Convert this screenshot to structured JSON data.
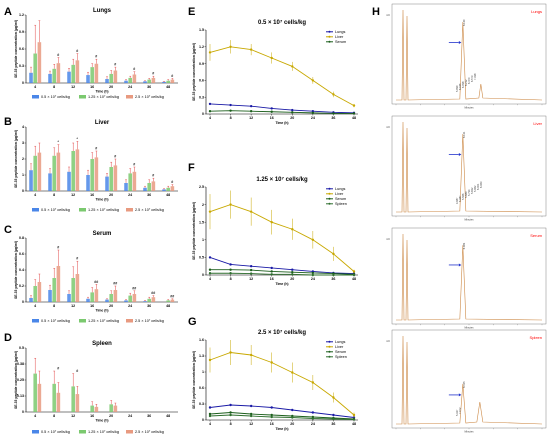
{
  "chart_data": [
    {
      "panel": "A",
      "type": "bar",
      "title": "Lungs",
      "categories": [
        "4",
        "8",
        "12",
        "16",
        "20",
        "24",
        "36",
        "48"
      ],
      "xlabel": "Time (h)",
      "ylabel": "SE-33 peptide concentration (μg/ml)",
      "ylim": [
        0,
        1.2
      ],
      "series": [
        {
          "name": "0.5 × 10⁷ cells/kg",
          "values": [
            0.18,
            0.16,
            0.2,
            0.14,
            0.07,
            0.04,
            0.03,
            0.02
          ],
          "errors": [
            0.1,
            0.05,
            0.06,
            0.05,
            0.04,
            0.02,
            0.01,
            0.01
          ]
        },
        {
          "name": "1.25 × 10⁷ cells/kg",
          "values": [
            0.52,
            0.25,
            0.32,
            0.28,
            0.16,
            0.09,
            0.06,
            0.04
          ],
          "errors": [
            0.5,
            0.08,
            0.1,
            0.06,
            0.06,
            0.03,
            0.02,
            0.02
          ]
        },
        {
          "name": "2.5 × 10⁷ cells/kg",
          "values": [
            0.72,
            0.35,
            0.4,
            0.34,
            0.22,
            0.15,
            0.09,
            0.06
          ],
          "errors": [
            0.38,
            0.1,
            0.12,
            0.08,
            0.06,
            0.05,
            0.03,
            0.02
          ]
        }
      ],
      "annotations": [
        "#",
        "#",
        "#",
        "#",
        "#",
        "#",
        "#"
      ]
    },
    {
      "panel": "B",
      "type": "bar",
      "title": "Liver",
      "categories": [
        "4",
        "8",
        "12",
        "16",
        "20",
        "24",
        "36",
        "48"
      ],
      "xlabel": "Time (h)",
      "ylabel": "SE-33 peptide concentration (μg/ml)",
      "ylim": [
        0,
        4
      ],
      "series": [
        {
          "name": "0.5 × 10⁷ cells/kg",
          "values": [
            1.3,
            1.1,
            1.2,
            1.0,
            0.9,
            0.5,
            0.2,
            0.1
          ],
          "errors": [
            0.4,
            0.3,
            0.3,
            0.3,
            0.2,
            0.2,
            0.1,
            0.05
          ]
        },
        {
          "name": "1.25 × 10⁷ cells/kg",
          "values": [
            2.2,
            2.2,
            2.5,
            2.0,
            1.5,
            1.1,
            0.5,
            0.2
          ],
          "errors": [
            0.6,
            0.5,
            0.5,
            0.4,
            0.3,
            0.3,
            0.2,
            0.1
          ]
        },
        {
          "name": "2.5 × 10⁷ cells/kg",
          "values": [
            2.4,
            2.4,
            2.6,
            2.1,
            1.6,
            1.2,
            0.6,
            0.3
          ],
          "errors": [
            0.6,
            0.5,
            0.5,
            0.4,
            0.4,
            0.3,
            0.2,
            0.1
          ]
        }
      ],
      "annotations": [
        "*",
        "*",
        "#",
        "#",
        "#",
        "#",
        "#"
      ]
    },
    {
      "panel": "C",
      "type": "bar",
      "title": "Serum",
      "categories": [
        "4",
        "8",
        "12",
        "16",
        "20",
        "24",
        "36",
        "48"
      ],
      "xlabel": "Time (h)",
      "ylabel": "SE-33 peptide concentration (μg/ml)",
      "ylim": [
        0,
        0.8
      ],
      "series": [
        {
          "name": "0.5 × 10⁷ cells/kg",
          "values": [
            0.05,
            0.15,
            0.1,
            0.04,
            0.03,
            0.02,
            0.01,
            0.0
          ],
          "errors": [
            0.03,
            0.06,
            0.04,
            0.02,
            0.01,
            0.01,
            0.01,
            0.0
          ]
        },
        {
          "name": "1.25 × 10⁷ cells/kg",
          "values": [
            0.2,
            0.3,
            0.3,
            0.12,
            0.1,
            0.08,
            0.04,
            0.02
          ],
          "errors": [
            0.08,
            0.12,
            0.14,
            0.06,
            0.04,
            0.03,
            0.02,
            0.01
          ]
        },
        {
          "name": "2.5 × 10⁷ cells/kg",
          "values": [
            0.25,
            0.45,
            0.35,
            0.16,
            0.15,
            0.1,
            0.06,
            0.03
          ],
          "errors": [
            0.1,
            0.2,
            0.16,
            0.06,
            0.05,
            0.04,
            0.02,
            0.01
          ]
        }
      ],
      "annotations": [
        "#",
        "#",
        "##",
        "##",
        "##",
        "##",
        "##"
      ]
    },
    {
      "panel": "D",
      "type": "bar",
      "title": "Spleen",
      "categories": [
        "4",
        "8",
        "12",
        "16",
        "20",
        "24",
        "36",
        "48"
      ],
      "xlabel": "Time (h)",
      "ylabel": "SE-33 peptide concentration (μg/ml)",
      "ylim": [
        0,
        0.5
      ],
      "series": [
        {
          "name": "0.5 × 10⁷ cells/kg",
          "values": [
            0.0,
            0.0,
            0.0,
            0.0,
            0.0,
            0.0,
            0.0,
            0.0
          ],
          "errors": [
            0,
            0,
            0,
            0,
            0,
            0,
            0,
            0
          ]
        },
        {
          "name": "1.25 × 10⁷ cells/kg",
          "values": [
            0.3,
            0.22,
            0.2,
            0.05,
            0.06,
            0.0,
            0.0,
            0.0
          ],
          "errors": [
            0.12,
            0.1,
            0.1,
            0.03,
            0.03,
            0,
            0,
            0
          ]
        },
        {
          "name": "2.5 × 10⁷ cells/kg",
          "values": [
            0.22,
            0.15,
            0.14,
            0.04,
            0.05,
            0.0,
            0.0,
            0.0
          ],
          "errors": [
            0.1,
            0.08,
            0.06,
            0.02,
            0.02,
            0,
            0,
            0
          ]
        }
      ],
      "annotations": [
        "#",
        "#"
      ]
    },
    {
      "panel": "E",
      "type": "line",
      "title": "0.5 × 10⁷ cells/kg",
      "x": [
        4,
        8,
        12,
        16,
        20,
        24,
        36,
        48
      ],
      "xlabel": "Time (h)",
      "ylabel": "SE-33 peptide concentration (μg/ml)",
      "ylim": [
        0,
        1.5
      ],
      "series": [
        {
          "name": "Lungs",
          "color": "#1a1aa6",
          "values": [
            0.18,
            0.16,
            0.14,
            0.1,
            0.07,
            0.05,
            0.03,
            0.02
          ]
        },
        {
          "name": "Liver",
          "color": "#c8a800",
          "values": [
            1.1,
            1.2,
            1.15,
            1.0,
            0.85,
            0.6,
            0.35,
            0.15
          ],
          "errors": [
            0.15,
            0.12,
            0.1,
            0.1,
            0.08,
            0.06,
            0.05,
            0.03
          ]
        },
        {
          "name": "Serum",
          "color": "#1b5e1b",
          "values": [
            0.05,
            0.06,
            0.05,
            0.04,
            0.03,
            0.02,
            0.01,
            0.01
          ]
        }
      ]
    },
    {
      "panel": "F",
      "type": "line",
      "title": "1.25 × 10⁷ cells/kg",
      "x": [
        4,
        8,
        12,
        16,
        20,
        24,
        36,
        48
      ],
      "xlabel": "Time (h)",
      "ylabel": "SE-33 peptide concentration (μg/ml)",
      "ylim": [
        0,
        2.5
      ],
      "series": [
        {
          "name": "Lungs",
          "color": "#1a1aa6",
          "values": [
            0.5,
            0.3,
            0.25,
            0.2,
            0.15,
            0.1,
            0.06,
            0.04
          ]
        },
        {
          "name": "Liver",
          "color": "#c8a800",
          "values": [
            1.8,
            2.0,
            1.8,
            1.5,
            1.3,
            1.0,
            0.6,
            0.1
          ],
          "errors": [
            0.5,
            0.4,
            0.4,
            0.35,
            0.3,
            0.25,
            0.2,
            0.05
          ]
        },
        {
          "name": "Serum",
          "color": "#1b5e1b",
          "values": [
            0.15,
            0.15,
            0.14,
            0.1,
            0.08,
            0.06,
            0.04,
            0.02
          ]
        },
        {
          "name": "Spleen",
          "color": "#2f6f2f",
          "values": [
            0.05,
            0.05,
            0.04,
            0.02,
            0.02,
            0.0,
            0.0,
            0.0
          ]
        }
      ]
    },
    {
      "panel": "G",
      "type": "line",
      "title": "2.5 × 10⁷ cells/kg",
      "x": [
        4,
        8,
        12,
        16,
        20,
        24,
        36,
        48
      ],
      "xlabel": "Time (h)",
      "ylabel": "SE-33 peptide concentration (μg/ml)",
      "ylim": [
        0,
        1.6
      ],
      "series": [
        {
          "name": "Lungs",
          "color": "#1a1aa6",
          "values": [
            0.25,
            0.3,
            0.28,
            0.25,
            0.2,
            0.15,
            0.1,
            0.05
          ]
        },
        {
          "name": "Liver",
          "color": "#c8a800",
          "values": [
            1.2,
            1.35,
            1.3,
            1.15,
            0.95,
            0.75,
            0.45,
            0.1
          ],
          "errors": [
            0.25,
            0.25,
            0.2,
            0.2,
            0.2,
            0.15,
            0.1,
            0.05
          ]
        },
        {
          "name": "Serum",
          "color": "#1b5e1b",
          "values": [
            0.12,
            0.15,
            0.12,
            0.1,
            0.08,
            0.06,
            0.04,
            0.02
          ]
        },
        {
          "name": "Spleen",
          "color": "#2f6f2f",
          "values": [
            0.08,
            0.1,
            0.08,
            0.06,
            0.05,
            0.03,
            0.02,
            0.01
          ]
        }
      ]
    }
  ],
  "panel_letters": {
    "a": "A",
    "b": "B",
    "c": "C",
    "d": "D",
    "e": "E",
    "f": "F",
    "g": "G",
    "h": "H"
  },
  "hplc": [
    {
      "title": "Lungs",
      "peaks": [
        "6.149",
        "5.999",
        "6.045",
        "6.098",
        "6.212",
        "6.470",
        "6.573",
        "7.338"
      ]
    },
    {
      "title": "Liver",
      "peaks": [
        "6.121",
        "4.987",
        "5.387",
        "5.566",
        "5.689",
        "5.794",
        "5.822",
        "5.962",
        "6.001",
        "6.063"
      ]
    },
    {
      "title": "Serum",
      "peaks": [
        "6.083"
      ]
    },
    {
      "title": "Spleen",
      "peaks": [
        "6.105",
        "5.327",
        "7.072"
      ]
    }
  ],
  "hplc_axis": {
    "xlabel": "Minutes",
    "yunit": "mV"
  },
  "colors": {
    "blue": "#4a86e8",
    "green": "#7bc96f",
    "orange": "#e89a80",
    "red": "#e14b4b",
    "arrow": "#2233cc"
  }
}
